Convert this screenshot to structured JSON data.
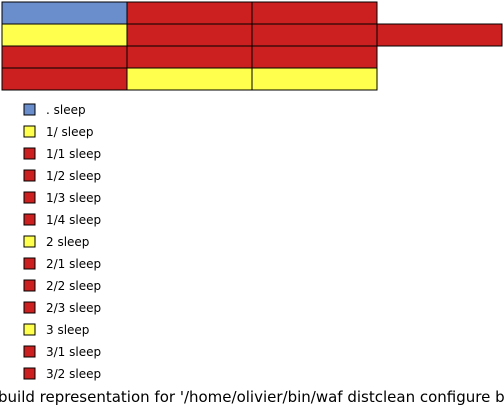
{
  "colors": {
    "blue": "#6a8dcb",
    "yellow": "#ffff4d",
    "red": "#cc1f1f",
    "outline": "#000000"
  },
  "grid": {
    "rows": [
      [
        "blue",
        "red",
        "red"
      ],
      [
        "yellow",
        "red",
        "red",
        "red"
      ],
      [
        "red",
        "red",
        "red"
      ],
      [
        "red",
        "yellow",
        "yellow"
      ]
    ]
  },
  "legend": [
    {
      "label": ". sleep",
      "color": "blue"
    },
    {
      "label": "1/ sleep",
      "color": "yellow"
    },
    {
      "label": "1/1 sleep",
      "color": "red"
    },
    {
      "label": "1/2 sleep",
      "color": "red"
    },
    {
      "label": "1/3 sleep",
      "color": "red"
    },
    {
      "label": "1/4 sleep",
      "color": "red"
    },
    {
      "label": "2 sleep",
      "color": "yellow"
    },
    {
      "label": "2/1 sleep",
      "color": "red"
    },
    {
      "label": "2/2 sleep",
      "color": "red"
    },
    {
      "label": "2/3 sleep",
      "color": "red"
    },
    {
      "label": "3 sleep",
      "color": "yellow"
    },
    {
      "label": "3/1 sleep",
      "color": "red"
    },
    {
      "label": "3/2 sleep",
      "color": "red"
    }
  ],
  "caption": "build representation for '/home/olivier/bin/waf distclean configure build'"
}
